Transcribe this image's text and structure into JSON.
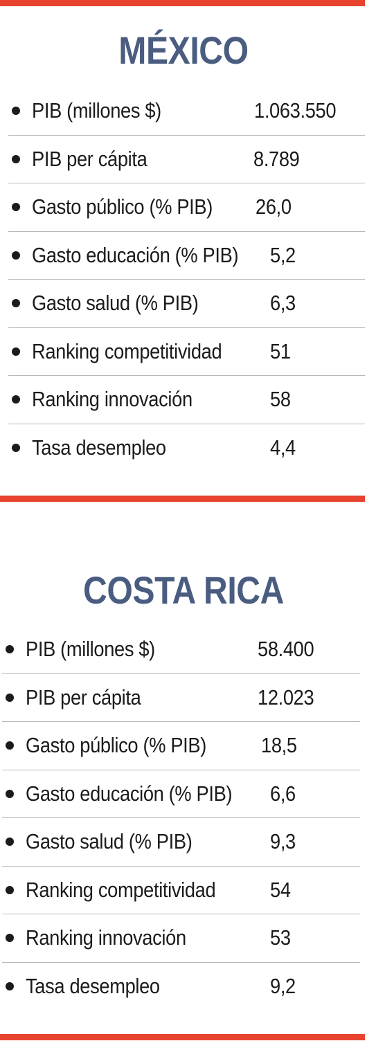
{
  "colors": {
    "accent_bar": "#e8432e",
    "title": "#4a5d80",
    "divider": "#b7b7b7"
  },
  "mexico": {
    "title": "MÉXICO",
    "rows": [
      {
        "label": "PIB (millones $)",
        "value": "1.063.550"
      },
      {
        "label": "PIB per cápita",
        "value": "8.789"
      },
      {
        "label": "Gasto público (% PIB)",
        "value": "26,0"
      },
      {
        "label": "Gasto educación (% PIB)",
        "value": "5,2"
      },
      {
        "label": "Gasto salud (% PIB)",
        "value": "6,3"
      },
      {
        "label": "Ranking competitividad",
        "value": "51"
      },
      {
        "label": "Ranking innovación",
        "value": "58"
      },
      {
        "label": "Tasa desempleo",
        "value": "4,4"
      }
    ]
  },
  "costa_rica": {
    "title": "COSTA RICA",
    "rows": [
      {
        "label": "PIB (millones $)",
        "value": "58.400"
      },
      {
        "label": "PIB per cápita",
        "value": "12.023"
      },
      {
        "label": "Gasto público (% PIB)",
        "value": "18,5"
      },
      {
        "label": "Gasto educación (% PIB)",
        "value": "6,6"
      },
      {
        "label": "Gasto salud (% PIB)",
        "value": "9,3"
      },
      {
        "label": "Ranking competitividad",
        "value": "54"
      },
      {
        "label": "Ranking innovación",
        "value": "53"
      },
      {
        "label": "Tasa desempleo",
        "value": "9,2"
      }
    ]
  }
}
